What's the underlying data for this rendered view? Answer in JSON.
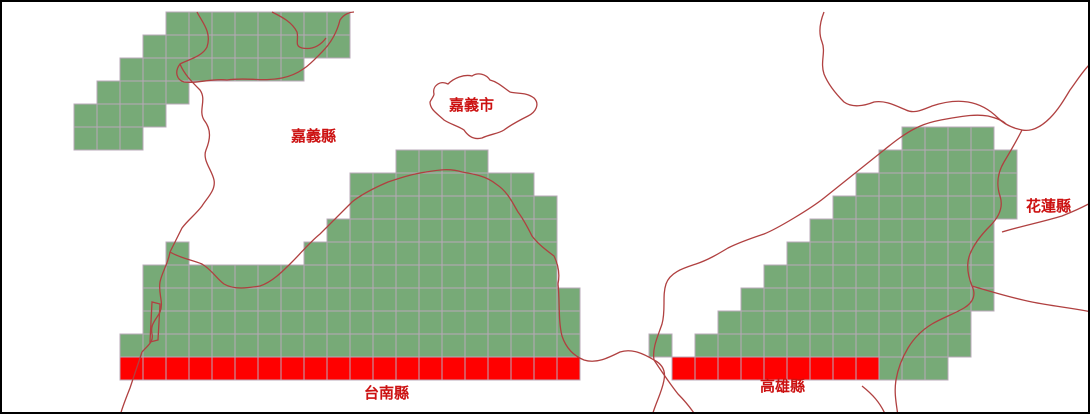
{
  "map": {
    "labels": {
      "chiayi_county": "嘉義縣",
      "chiayi_city": "嘉義市",
      "hualien_county": "花蓮縣",
      "tainan_county": "台南縣",
      "kaohsiung_county": "高雄縣"
    },
    "legend_colors": {
      "label_text": "#cc1111",
      "boundary_line": "#b04040",
      "covered_cell": "#77aa77",
      "covered_cell_border": "#b8a8b8",
      "highlight_cell": "#ff0000",
      "frame": "#000000",
      "background": "#ffffff"
    }
  }
}
